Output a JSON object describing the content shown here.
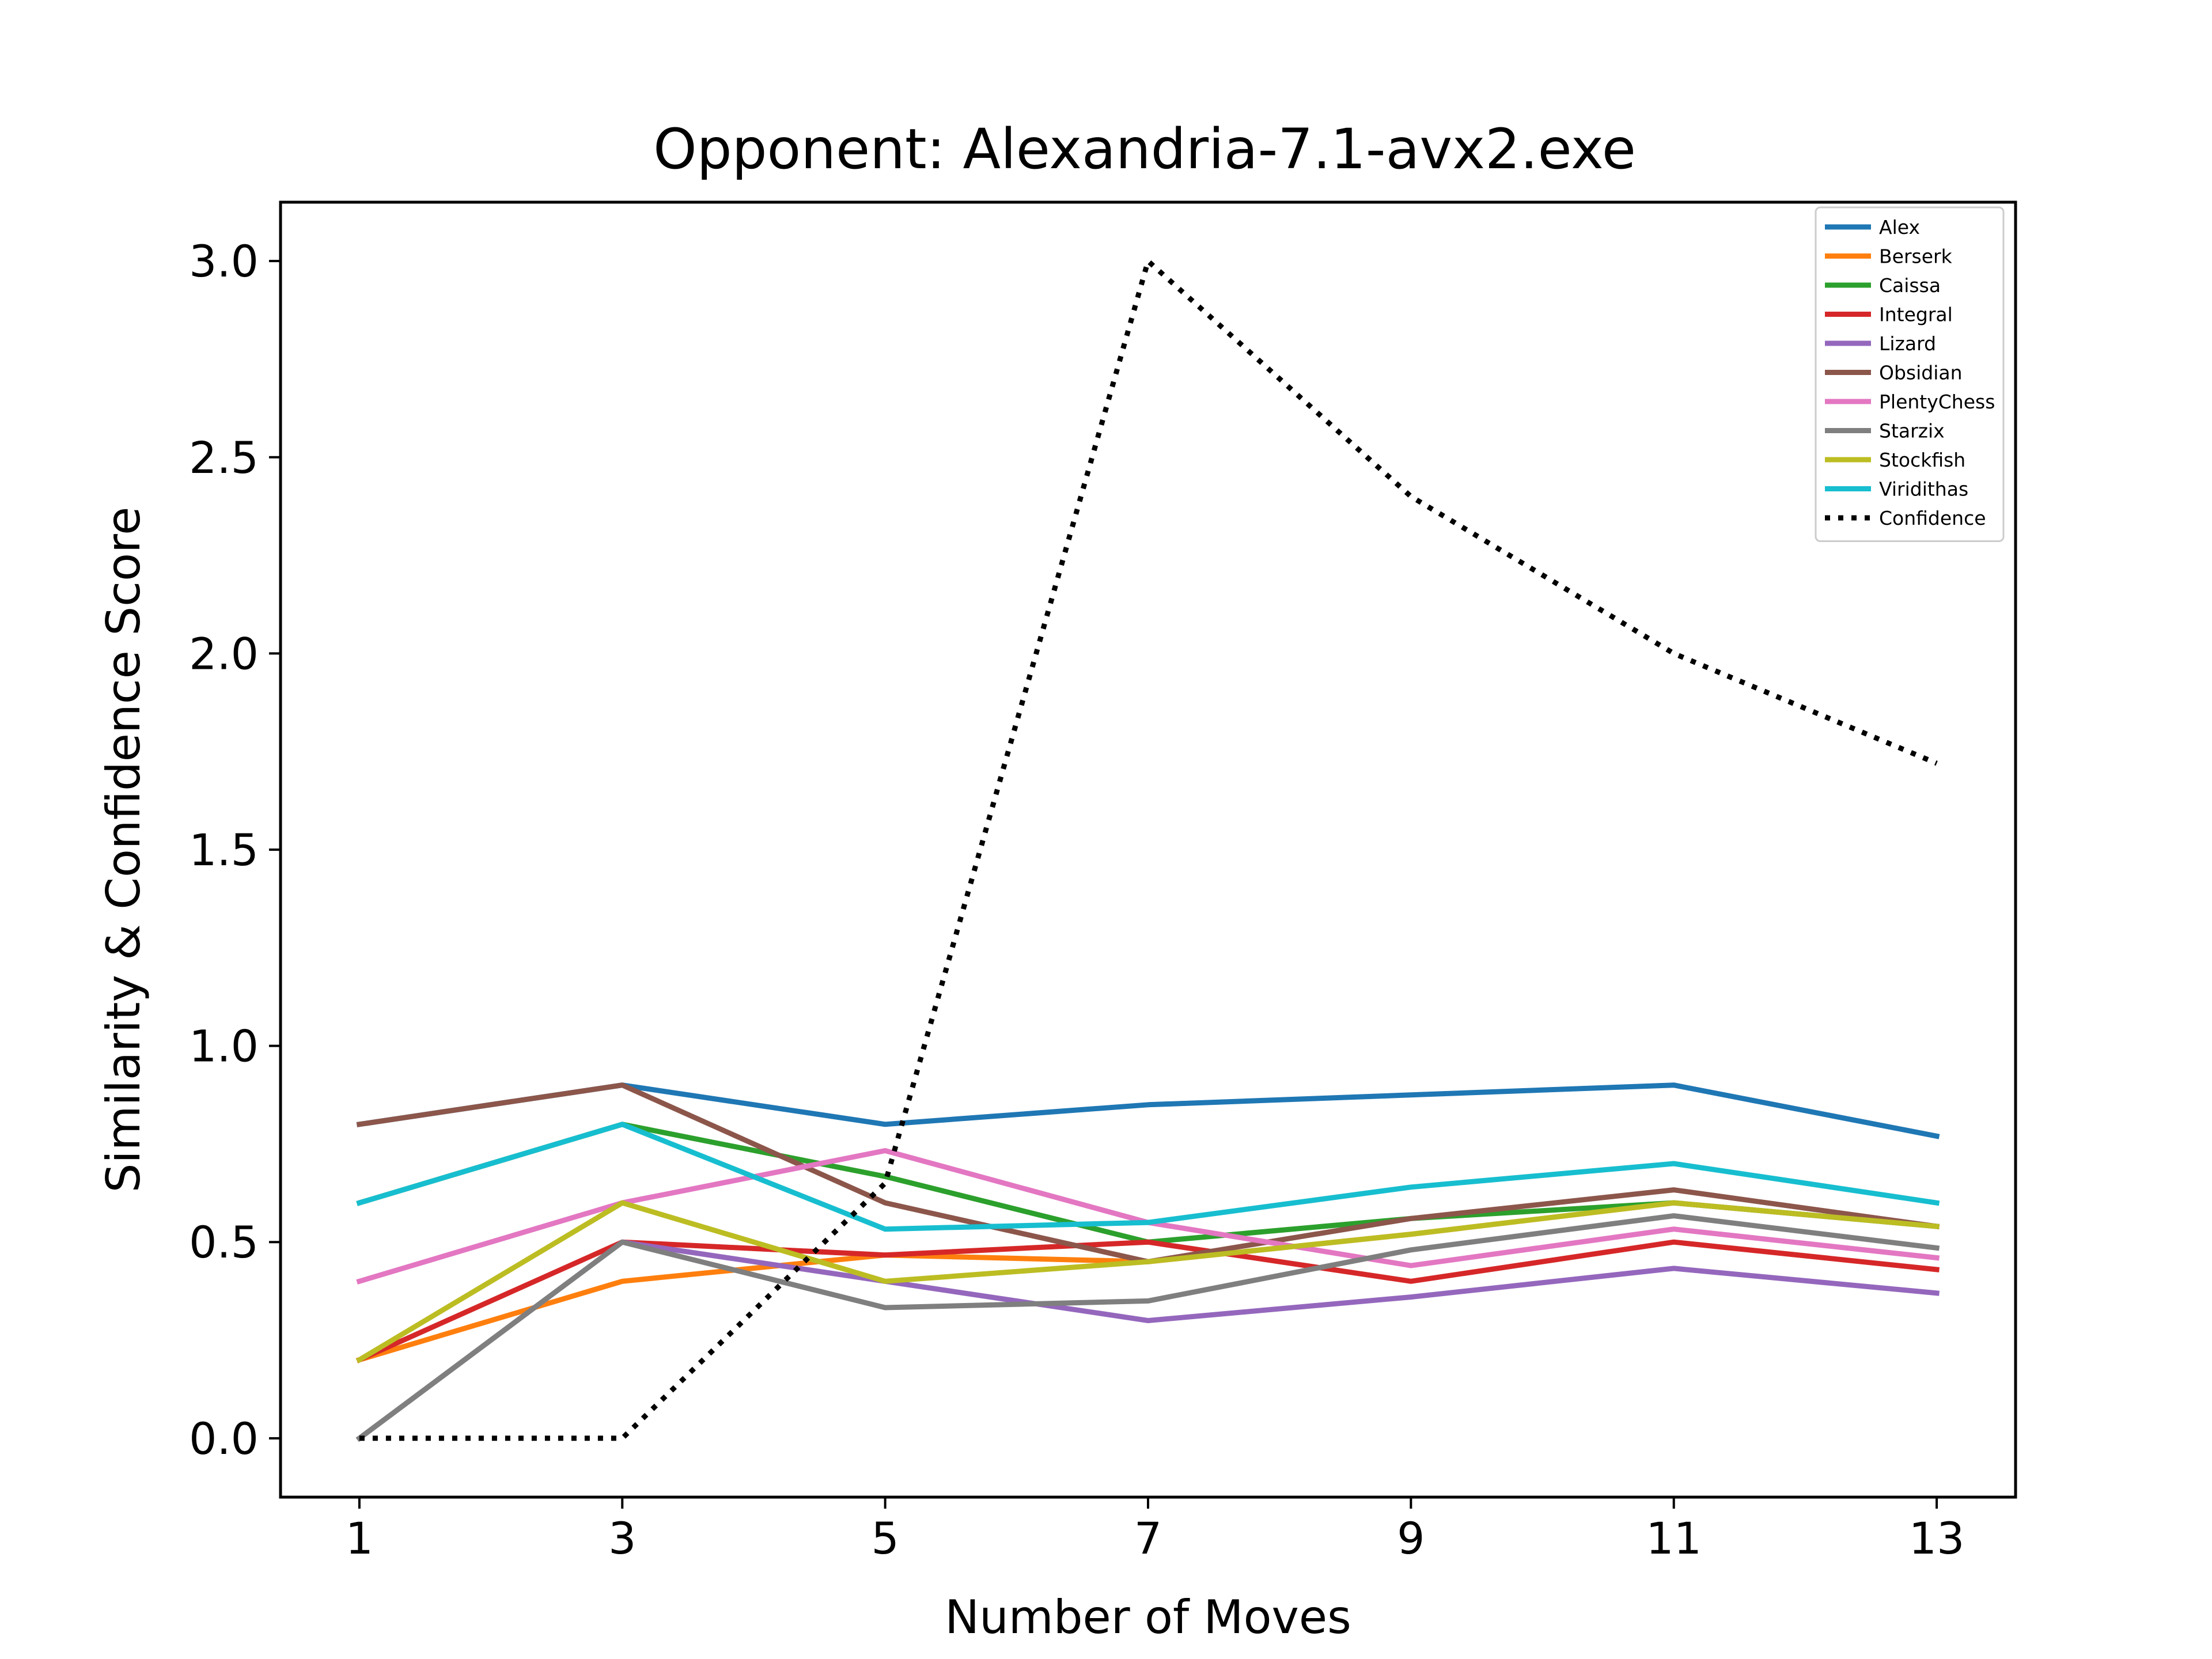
{
  "chart_data": {
    "type": "line",
    "title": "Opponent: Alexandria-7.1-avx2.exe",
    "xlabel": "Number of Moves",
    "ylabel": "Similarity & Confidence Score",
    "x": [
      1,
      3,
      5,
      7,
      9,
      11,
      13
    ],
    "x_tick_labels": [
      "1",
      "3",
      "5",
      "7",
      "9",
      "11",
      "13"
    ],
    "y_ticks": [
      0.0,
      0.5,
      1.0,
      1.5,
      2.0,
      2.5,
      3.0
    ],
    "y_tick_labels": [
      "0.0",
      "0.5",
      "1.0",
      "1.5",
      "2.0",
      "2.5",
      "3.0"
    ],
    "xlim": [
      0.4,
      13.6
    ],
    "ylim": [
      -0.15,
      3.15
    ],
    "grid": false,
    "legend_position": "upper right",
    "series": [
      {
        "name": "Alex",
        "color": "#1f77b4",
        "style": "solid",
        "values": [
          0.8,
          0.9,
          0.8,
          0.85,
          0.875,
          0.9,
          0.77
        ]
      },
      {
        "name": "Berserk",
        "color": "#ff7f0e",
        "style": "solid",
        "values": [
          0.2,
          0.4,
          0.467,
          0.45,
          0.52,
          0.6,
          0.54
        ]
      },
      {
        "name": "Caissa",
        "color": "#2ca02c",
        "style": "solid",
        "values": [
          0.6,
          0.8,
          0.667,
          0.5,
          0.56,
          0.6,
          0.54
        ]
      },
      {
        "name": "Integral",
        "color": "#d62728",
        "style": "solid",
        "values": [
          0.2,
          0.5,
          0.467,
          0.5,
          0.4,
          0.5,
          0.43
        ]
      },
      {
        "name": "Lizard",
        "color": "#9467bd",
        "style": "solid",
        "values": [
          0.0,
          0.5,
          0.4,
          0.3,
          0.36,
          0.433,
          0.37
        ]
      },
      {
        "name": "Obsidian",
        "color": "#8c564b",
        "style": "solid",
        "values": [
          0.8,
          0.9,
          0.6,
          0.45,
          0.56,
          0.633,
          0.54
        ]
      },
      {
        "name": "PlentyChess",
        "color": "#e377c2",
        "style": "solid",
        "values": [
          0.4,
          0.6,
          0.733,
          0.55,
          0.44,
          0.533,
          0.46
        ]
      },
      {
        "name": "Starzix",
        "color": "#7f7f7f",
        "style": "solid",
        "values": [
          0.0,
          0.5,
          0.333,
          0.35,
          0.48,
          0.567,
          0.485
        ]
      },
      {
        "name": "Stockfish",
        "color": "#bcbd22",
        "style": "solid",
        "values": [
          0.2,
          0.6,
          0.4,
          0.45,
          0.52,
          0.6,
          0.54
        ]
      },
      {
        "name": "Viridithas",
        "color": "#17becf",
        "style": "solid",
        "values": [
          0.6,
          0.8,
          0.533,
          0.55,
          0.64,
          0.7,
          0.6
        ]
      },
      {
        "name": "Confidence",
        "color": "#000000",
        "style": "dotted",
        "values": [
          0.0,
          0.0,
          0.65,
          3.0,
          2.4,
          2.0,
          1.72
        ]
      }
    ]
  }
}
